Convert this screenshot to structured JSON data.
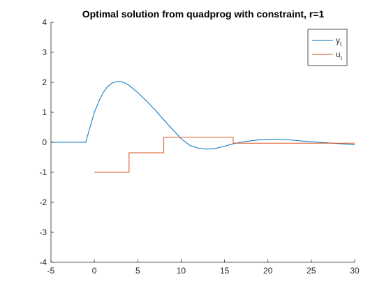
{
  "chart_data": {
    "type": "line",
    "title": "Optimal solution from quadprog with constraint, r=1",
    "xlabel": "",
    "ylabel": "",
    "xlim": [
      -5,
      30
    ],
    "ylim": [
      -4,
      4
    ],
    "xticks": [
      -5,
      0,
      5,
      10,
      15,
      20,
      25,
      30
    ],
    "yticks": [
      -4,
      -3,
      -2,
      -1,
      0,
      1,
      2,
      3,
      4
    ],
    "xtick_labels": [
      "-5",
      "0",
      "5",
      "10",
      "15",
      "20",
      "25",
      "30"
    ],
    "ytick_labels": [
      "-4",
      "-3",
      "-2",
      "-1",
      "0",
      "1",
      "2",
      "3",
      "4"
    ],
    "grid": false,
    "legend_position": "top-right",
    "series": [
      {
        "name": "y",
        "name_subscript": "t",
        "color": "#0072BD",
        "style": "line",
        "x": [
          -5,
          -1,
          -0.5,
          0,
          0.5,
          1,
          1.5,
          2,
          2.5,
          3,
          3.5,
          4,
          5,
          6,
          7,
          8,
          9,
          10,
          11,
          12,
          13,
          14,
          15,
          16,
          17,
          18,
          19,
          20,
          21,
          22,
          23,
          24,
          25,
          26,
          27,
          28,
          29,
          30
        ],
        "values": [
          0,
          0,
          0.5,
          1.0,
          1.35,
          1.65,
          1.85,
          1.97,
          2.02,
          2.03,
          1.98,
          1.9,
          1.66,
          1.38,
          1.08,
          0.75,
          0.43,
          0.12,
          -0.1,
          -0.2,
          -0.23,
          -0.2,
          -0.13,
          -0.05,
          0.01,
          0.05,
          0.08,
          0.1,
          0.1,
          0.09,
          0.07,
          0.04,
          0.02,
          0.0,
          -0.02,
          -0.04,
          -0.06,
          -0.08
        ]
      },
      {
        "name": "u",
        "name_subscript": "t",
        "color": "#D95319",
        "style": "stairs",
        "x": [
          0,
          4,
          8,
          12,
          16,
          20,
          24,
          28,
          30
        ],
        "values": [
          -1,
          -0.35,
          0.17,
          0.17,
          -0.03,
          -0.03,
          -0.03,
          -0.03,
          -0.03
        ]
      }
    ]
  }
}
